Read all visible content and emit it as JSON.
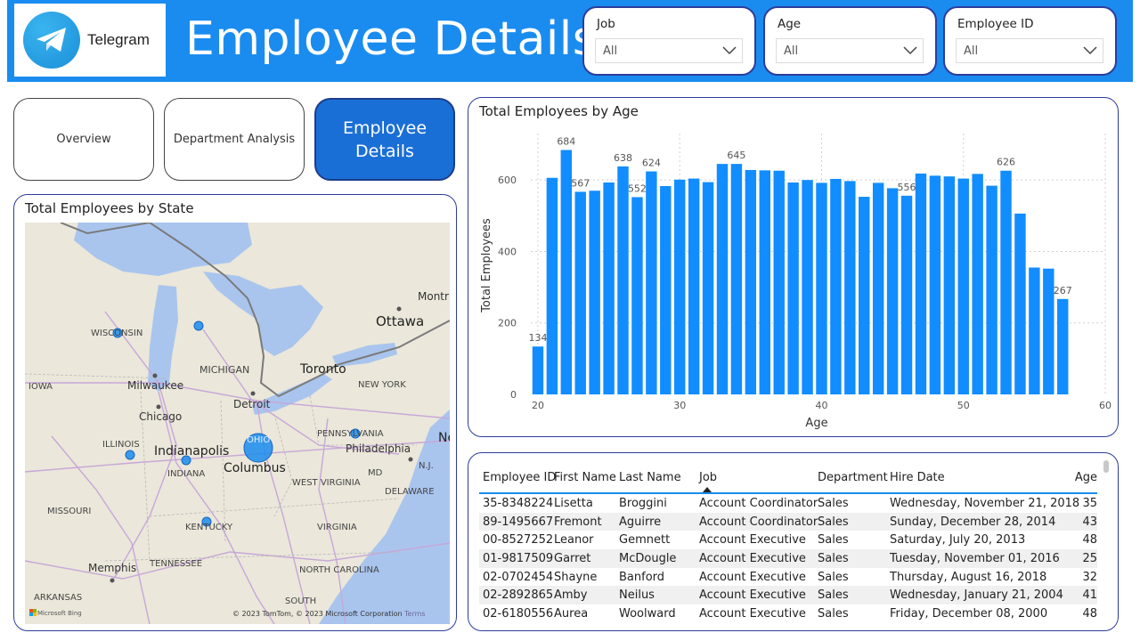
{
  "header": {
    "title": "Employee Details",
    "logo_text": "Telegram",
    "filters": [
      {
        "label": "Job",
        "value": "All"
      },
      {
        "label": "Age",
        "value": "All"
      },
      {
        "label": "Employee ID",
        "value": "All"
      }
    ]
  },
  "nav": {
    "overview": "Overview",
    "department": "Department Analysis",
    "employee_line1": "Employee",
    "employee_line2": "Details"
  },
  "map": {
    "title": "Total Employees by State",
    "labels": {
      "wisconsin": "WISCONSIN",
      "michigan": "MICHIGAN",
      "iowa": "IOWA",
      "milwaukee": "Milwaukee",
      "chicago": "Chicago",
      "detroit": "Detroit",
      "toronto": "Toronto",
      "ottawa": "Ottawa",
      "montreal": "Montr",
      "new_york": "NEW YORK",
      "illinois": "ILLINOIS",
      "indianapolis": "Indianapolis",
      "indiana": "INDIANA",
      "ohio": "OHIO",
      "columbus": "Columbus",
      "pennsylvania": "PENNSYLVANIA",
      "philadelphia": "Philadelphia",
      "nj": "N.J.",
      "md": "MD",
      "west_virginia": "WEST\nVIRGINIA",
      "delaware": "DELAWARE",
      "missouri": "MISSOURI",
      "kentucky": "KENTUCKY",
      "virginia": "VIRGINIA",
      "tennessee": "TENNESSEE",
      "north_carolina": "NORTH CAROLINA",
      "memphis": "Memphis",
      "arkansas": "ARKANSAS",
      "south": "SOUTH",
      "ne": "Ne"
    },
    "attribution": "© 2023 TomTom, © 2023 Microsoft Corporation",
    "terms": "Terms",
    "bing": "Microsoft Bing"
  },
  "chart_data": {
    "type": "bar",
    "title": "Total Employees by Age",
    "xlabel": "Age",
    "ylabel": "Total Employees",
    "x": [
      20,
      21,
      22,
      23,
      24,
      25,
      26,
      27,
      28,
      29,
      30,
      31,
      32,
      33,
      34,
      35,
      36,
      37,
      38,
      39,
      40,
      41,
      42,
      43,
      44,
      45,
      46,
      47,
      48,
      49,
      50,
      51,
      52,
      53,
      54,
      55,
      56,
      57
    ],
    "values": [
      134,
      606,
      684,
      567,
      570,
      593,
      638,
      552,
      624,
      583,
      601,
      604,
      594,
      645,
      645,
      628,
      627,
      626,
      593,
      600,
      592,
      603,
      597,
      553,
      592,
      577,
      556,
      618,
      612,
      610,
      604,
      617,
      584,
      626,
      506,
      355,
      352,
      267
    ],
    "data_labels": {
      "20": 134,
      "22": 684,
      "23": 567,
      "26": 638,
      "27": 552,
      "28": 624,
      "34": 645,
      "46": 556,
      "53": 626,
      "57": 267
    },
    "xlim": [
      19.5,
      60
    ],
    "ylim": [
      0,
      730
    ],
    "x_ticks": [
      20,
      30,
      40,
      50,
      60
    ],
    "y_ticks": [
      0,
      200,
      400,
      600
    ],
    "color": "#118dff",
    "grid": true
  },
  "table": {
    "columns": [
      "Employee ID",
      "First Name",
      "Last Name",
      "Job",
      "Department",
      "Hire Date",
      "Age"
    ],
    "rows": [
      [
        "35-8348224",
        "Lisetta",
        "Broggini",
        "Account Coordinator",
        "Sales",
        "Wednesday, November 21, 2018",
        "35"
      ],
      [
        "89-1495667",
        "Fremont",
        "Aguirre",
        "Account Coordinator",
        "Sales",
        "Sunday, December 28, 2014",
        "43"
      ],
      [
        "00-8527252",
        "Leanor",
        "Gemnett",
        "Account Executive",
        "Sales",
        "Saturday, July 20, 2013",
        "48"
      ],
      [
        "01-9817509",
        "Garret",
        "McDougle",
        "Account Executive",
        "Sales",
        "Tuesday, November 01, 2016",
        "25"
      ],
      [
        "02-0702454",
        "Shayne",
        "Banford",
        "Account Executive",
        "Sales",
        "Thursday, August 16, 2018",
        "32"
      ],
      [
        "02-2892865",
        "Amby",
        "Neilus",
        "Account Executive",
        "Sales",
        "Wednesday, January 21, 2004",
        "41"
      ],
      [
        "02-6180556",
        "Aurea",
        "Woolward",
        "Account Executive",
        "Sales",
        "Friday, December 08, 2000",
        "48"
      ]
    ]
  },
  "colors": {
    "header": "#1a8cef",
    "accent": "#1a6fd6",
    "border": "#2d3c9b",
    "bar": "#118dff"
  }
}
